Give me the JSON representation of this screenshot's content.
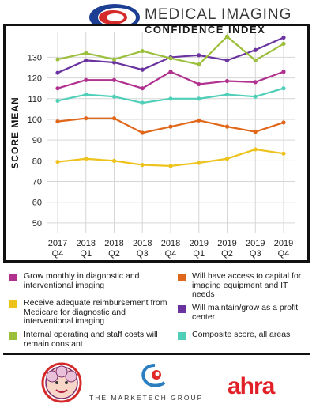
{
  "header": {
    "title_line1": "MEDICAL IMAGING",
    "title_line2": "CONFIDENCE INDEX"
  },
  "chart_data": {
    "type": "line",
    "ylabel": "SCORE MEAN",
    "xlabel": "",
    "ylim": [
      45,
      142
    ],
    "yticks": [
      50,
      60,
      70,
      80,
      90,
      100,
      110,
      120,
      130
    ],
    "categories": [
      [
        "2017",
        "Q4"
      ],
      [
        "2018",
        "Q1"
      ],
      [
        "2018",
        "Q2"
      ],
      [
        "2018",
        "Q3"
      ],
      [
        "2018",
        "Q4"
      ],
      [
        "2019",
        "Q1"
      ],
      [
        "2019",
        "Q2"
      ],
      [
        "2019",
        "Q3"
      ],
      [
        "2019",
        "Q4"
      ]
    ],
    "grid": true,
    "series": [
      {
        "name": "Grow monthly in diagnostic and interventional imaging",
        "color": "#b1318f",
        "values": [
          115,
          119,
          119,
          115,
          123,
          117,
          118.5,
          118,
          123
        ]
      },
      {
        "name": "Will have access to capital for imaging equipment and IT needs",
        "color": "#e0661a",
        "values": [
          99,
          100.5,
          100.5,
          93.5,
          96.5,
          99.5,
          96.5,
          94,
          98.5
        ]
      },
      {
        "name": "Receive adequate reimbursement from Medicare for diagnostic and interventional imaging",
        "color": "#edc21b",
        "values": [
          79.5,
          81,
          80,
          78,
          77.5,
          79,
          81,
          85.5,
          83.5
        ]
      },
      {
        "name": "Will maintain/grow as a profit center",
        "color": "#6a33a0",
        "values": [
          122.5,
          128.5,
          127.5,
          124,
          130,
          131,
          128.5,
          133.5,
          139.5
        ]
      },
      {
        "name": "Internal operating and staff costs will remain constant",
        "color": "#9bbf3b",
        "values": [
          129,
          132,
          129,
          133,
          129.5,
          126.5,
          140,
          128.5,
          136.5
        ]
      },
      {
        "name": "Composite score, all areas",
        "color": "#4fcfb8",
        "values": [
          109,
          112,
          111,
          108,
          110,
          110,
          112,
          111,
          115
        ]
      }
    ]
  },
  "legend": [
    {
      "label": "Grow monthly in diagnostic and interventional imaging",
      "color": "#b1318f"
    },
    {
      "label": "Will have access to capital for imaging equipment and IT needs",
      "color": "#e0661a"
    },
    {
      "label": "Receive adequate reimbursement from Medicare for diagnostic and interventional imaging",
      "color": "#edc21b"
    },
    {
      "label": "Will maintain/grow as a profit center",
      "color": "#6a33a0"
    },
    {
      "label": "Internal operating and staff costs will remain constant",
      "color": "#9bbf3b"
    },
    {
      "label": "Composite score, all areas",
      "color": "#4fcfb8"
    }
  ],
  "footer": {
    "marketech": "THE MARKETECH GROUP",
    "ahra": "ahra"
  },
  "icons": [
    "mici-swoosh-logo",
    "cartoon-face-logo",
    "marketech-swoosh-logo"
  ]
}
